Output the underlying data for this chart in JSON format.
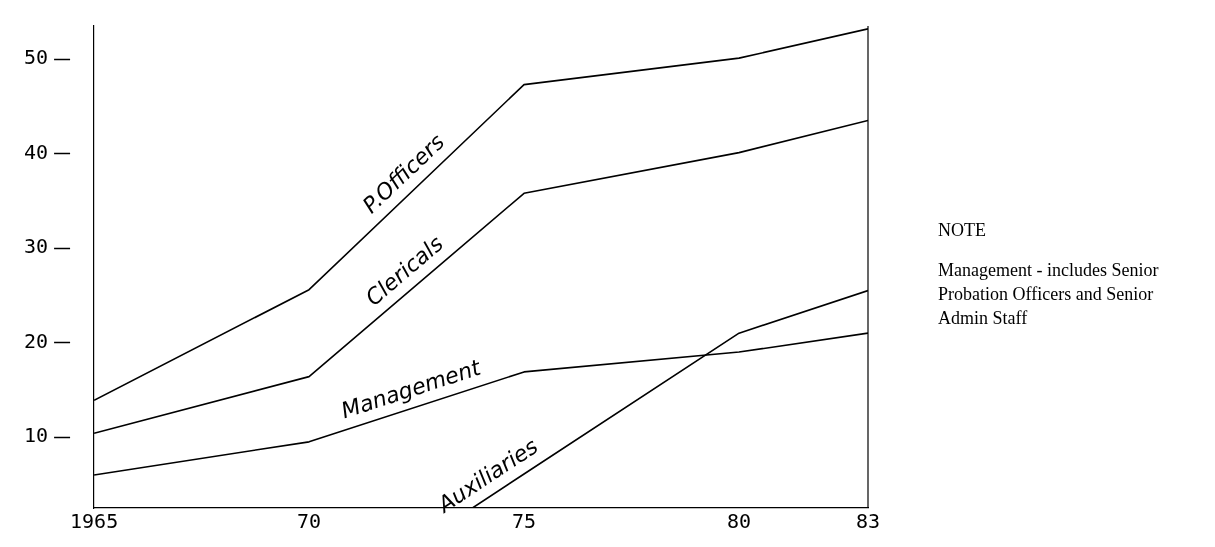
{
  "chart_data": {
    "type": "line",
    "x": [
      1965,
      1970,
      1975,
      1980,
      1983
    ],
    "series": [
      {
        "name": "P.Officers",
        "color": "#000000",
        "values": [
          13.9,
          25.6,
          47.3,
          50.1,
          53.2
        ]
      },
      {
        "name": "Clericals",
        "color": "#000000",
        "values": [
          10.4,
          16.4,
          35.8,
          40.1,
          43.5
        ]
      },
      {
        "name": "Management",
        "color": "#000000",
        "values": [
          6.0,
          9.5,
          16.9,
          19.0,
          21.0
        ]
      },
      {
        "name": "Auxiliaries",
        "color": "#000000",
        "x": [
          1973.8,
          1975,
          1980,
          1983
        ],
        "values": [
          2.5,
          6.1,
          21.0,
          25.5
        ]
      }
    ],
    "xlim": [
      1965,
      1983
    ],
    "xticks": [
      1965,
      {
        "value": 1970,
        "label": "70"
      },
      {
        "value": 1975,
        "label": "75"
      },
      {
        "value": 1980,
        "label": "80"
      },
      {
        "value": 1983,
        "label": "83"
      }
    ],
    "ylim": [
      2.5,
      53.5
    ],
    "yticks": [
      10,
      20,
      30,
      40,
      50
    ],
    "grid": false,
    "legend": false,
    "marker": "none",
    "line_style": "solid",
    "annotations": [
      "NOTE",
      "Management - includes Senior Probation Officers and Senior Admin Staff"
    ]
  }
}
